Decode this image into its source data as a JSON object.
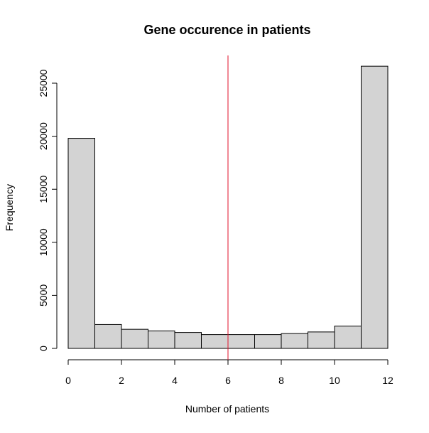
{
  "chart_data": {
    "type": "bar",
    "title": "Gene occurence in patients",
    "xlabel": "Number of patients",
    "ylabel": "Frequency",
    "bin_edges": [
      0,
      1,
      2,
      3,
      4,
      5,
      6,
      7,
      8,
      9,
      10,
      11,
      12
    ],
    "values": [
      19800,
      2250,
      1800,
      1650,
      1500,
      1300,
      1300,
      1300,
      1400,
      1550,
      2100,
      26600
    ],
    "xlim": [
      0,
      12
    ],
    "ylim": [
      0,
      25000
    ],
    "x_ticks": [
      0,
      2,
      4,
      6,
      8,
      10,
      12
    ],
    "y_ticks": [
      0,
      5000,
      10000,
      15000,
      20000,
      25000
    ],
    "vertical_line": {
      "x": 6,
      "color": "#e0102a"
    },
    "bar_fill": "#d3d3d3",
    "bar_stroke": "#000000",
    "grid": false,
    "legend": "none"
  }
}
